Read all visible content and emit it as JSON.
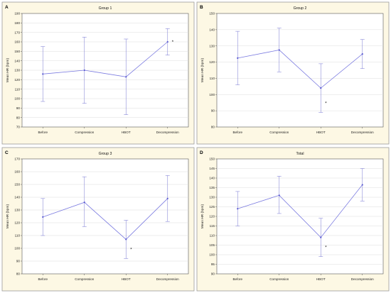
{
  "chart_data": [
    {
      "type": "line",
      "panel_letter": "A",
      "title": "Group 1",
      "xlabel": "",
      "ylabel": "Mean HR (bpm)",
      "ylim": [
        70,
        190
      ],
      "yticks": [
        70,
        80,
        90,
        100,
        110,
        120,
        130,
        140,
        150,
        160,
        170,
        180,
        190
      ],
      "categories": [
        "Before",
        "Compression",
        "HBOT",
        "Decompression"
      ],
      "values": [
        126,
        130,
        123,
        160
      ],
      "lower": [
        97,
        95,
        83,
        146
      ],
      "upper": [
        155,
        165,
        163,
        174
      ],
      "annotations": [
        {
          "category": "Decompression",
          "text": "*"
        }
      ]
    },
    {
      "type": "line",
      "panel_letter": "B",
      "title": "Group 2",
      "xlabel": "",
      "ylabel": "Mean HR (bpm)",
      "ylim": [
        80,
        150
      ],
      "yticks": [
        80,
        90,
        100,
        110,
        120,
        130,
        140,
        150
      ],
      "categories": [
        "Before",
        "Compression",
        "HBOT",
        "Decompression"
      ],
      "values": [
        122.5,
        127.5,
        104,
        125
      ],
      "lower": [
        106,
        114,
        89,
        116
      ],
      "upper": [
        139,
        141,
        119,
        134
      ],
      "annotations": [
        {
          "category": "HBOT",
          "text": "*"
        }
      ]
    },
    {
      "type": "line",
      "panel_letter": "C",
      "title": "Group 3",
      "xlabel": "",
      "ylabel": "Mean HR (bpm)",
      "ylim": [
        80,
        170
      ],
      "yticks": [
        80,
        90,
        100,
        110,
        120,
        130,
        140,
        150,
        160,
        170
      ],
      "categories": [
        "Before",
        "Compression",
        "HBOT",
        "Decompression"
      ],
      "values": [
        124.5,
        136,
        107,
        139
      ],
      "lower": [
        110,
        117,
        92,
        121
      ],
      "upper": [
        139,
        156,
        122,
        157
      ],
      "annotations": [
        {
          "category": "HBOT",
          "text": "*"
        }
      ]
    },
    {
      "type": "line",
      "panel_letter": "D",
      "title": "Total",
      "xlabel": "",
      "ylabel": "Mean HR (bpm)",
      "ylim": [
        90,
        150
      ],
      "yticks": [
        90,
        95,
        100,
        105,
        110,
        115,
        120,
        125,
        130,
        135,
        140,
        145,
        150
      ],
      "categories": [
        "Before",
        "Compression",
        "HBOT",
        "Decompression"
      ],
      "values": [
        124,
        131,
        109,
        136.5
      ],
      "lower": [
        115,
        121.5,
        99,
        128
      ],
      "upper": [
        133,
        141,
        119,
        145
      ],
      "annotations": [
        {
          "category": "HBOT",
          "text": "*"
        }
      ]
    }
  ]
}
